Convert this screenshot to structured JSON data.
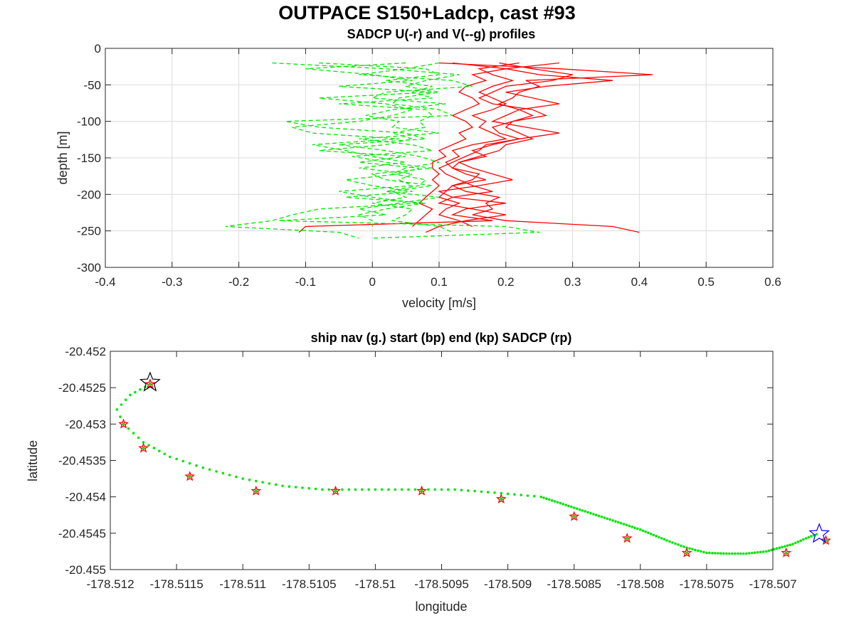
{
  "figure": {
    "title": "OUTPACE S150+Ladcp, cast #93"
  },
  "chart_data": [
    {
      "type": "line",
      "title": "SADCP U(-r) and V(--g) profiles",
      "xlabel": "velocity [m/s]",
      "ylabel": "depth [m]",
      "xlim": [
        -0.4,
        0.6
      ],
      "ylim": [
        -300,
        0
      ],
      "xticks": [
        -0.4,
        -0.3,
        -0.2,
        -0.1,
        0,
        0.1,
        0.2,
        0.3,
        0.4,
        0.5,
        0.6
      ],
      "yticks": [
        0,
        -50,
        -100,
        -150,
        -200,
        -250,
        -300
      ],
      "grid": true,
      "depths": [
        -20,
        -28,
        -36,
        -44,
        -52,
        -60,
        -68,
        -76,
        -84,
        -92,
        -100,
        -108,
        -116,
        -124,
        -132,
        -140,
        -148,
        -156,
        -164,
        -172,
        -180,
        -188,
        -196,
        -204,
        -212,
        -220,
        -228,
        -236,
        -244,
        -252,
        -260
      ],
      "series": [
        {
          "component": "U",
          "color": "#ff0000",
          "dash": "solid",
          "values": [
            0.1,
            0.28,
            0.42,
            0.23,
            0.25,
            0.22,
            0.21,
            0.19,
            0.22,
            0.24,
            0.21,
            0.2,
            0.22,
            0.24,
            0.2,
            0.19,
            0.16,
            0.13,
            0.12,
            0.14,
            0.17,
            0.12,
            0.14,
            0.19,
            0.17,
            0.18,
            0.15,
            0.2,
            0.36,
            0.4,
            null
          ]
        },
        {
          "component": "U",
          "color": "#ff0000",
          "dash": "solid",
          "values": [
            0.12,
            0.2,
            0.25,
            0.36,
            0.26,
            0.2,
            0.24,
            0.28,
            0.22,
            0.2,
            0.18,
            0.23,
            0.28,
            0.22,
            0.18,
            0.15,
            0.17,
            0.13,
            0.15,
            0.18,
            0.21,
            0.16,
            0.1,
            0.12,
            0.2,
            0.14,
            0.12,
            0.18,
            -0.1,
            -0.11,
            null
          ]
        },
        {
          "component": "U",
          "color": "#ff0000",
          "dash": "solid",
          "values": [
            0.22,
            0.16,
            0.18,
            0.21,
            0.18,
            0.16,
            0.18,
            0.2,
            0.18,
            0.15,
            0.17,
            0.16,
            0.18,
            0.2,
            0.15,
            0.12,
            0.13,
            0.11,
            0.12,
            0.16,
            0.15,
            0.12,
            0.11,
            0.1,
            0.13,
            0.11,
            0.1,
            0.13,
            0.15,
            null,
            null
          ]
        },
        {
          "component": "U",
          "color": "#ff0000",
          "dash": "solid",
          "values": [
            0.19,
            0.24,
            0.3,
            0.27,
            0.2,
            0.18,
            0.16,
            0.18,
            0.24,
            0.26,
            0.21,
            0.18,
            0.19,
            0.22,
            0.17,
            0.16,
            0.14,
            0.12,
            0.1,
            0.11,
            0.13,
            0.15,
            0.18,
            0.12,
            0.1,
            0.15,
            0.2,
            0.14,
            0.1,
            0.08,
            null
          ]
        },
        {
          "component": "U",
          "color": "#ff0000",
          "dash": "solid",
          "values": [
            0.28,
            0.2,
            0.15,
            0.17,
            0.14,
            0.13,
            0.15,
            0.16,
            0.14,
            0.12,
            0.14,
            0.15,
            0.13,
            0.14,
            0.12,
            0.1,
            0.11,
            0.09,
            0.09,
            0.1,
            0.09,
            0.1,
            0.09,
            0.08,
            0.07,
            0.09,
            0.08,
            0.07,
            0.06,
            null,
            null
          ]
        },
        {
          "component": "V",
          "color": "#00e600",
          "dash": "dashed",
          "values": [
            -0.15,
            0.02,
            0.13,
            0.08,
            0.05,
            0.1,
            0.04,
            0.03,
            0.1,
            0.12,
            -0.13,
            -0.08,
            0.05,
            0.08,
            -0.05,
            0.02,
            0.07,
            0.1,
            0.05,
            0.03,
            0.08,
            0.07,
            0.02,
            0.1,
            0.04,
            -0.02,
            0.02,
            -0.14,
            0.2,
            0.25,
            0.0
          ]
        },
        {
          "component": "V",
          "color": "#00e600",
          "dash": "dashed",
          "values": [
            0.05,
            -0.1,
            0.0,
            0.06,
            -0.05,
            0.09,
            -0.08,
            0.02,
            0.06,
            0.03,
            -0.02,
            -0.12,
            -0.09,
            0.04,
            -0.09,
            -0.04,
            0.0,
            0.05,
            -0.02,
            0.06,
            0.04,
            0.06,
            -0.05,
            0.0,
            0.07,
            -0.08,
            -0.12,
            -0.15,
            -0.22,
            -0.05,
            -0.02
          ]
        },
        {
          "component": "V",
          "color": "#00e600",
          "dash": "dashed",
          "values": [
            0.1,
            0.05,
            -0.02,
            0.12,
            0.15,
            0.02,
            0.0,
            0.11,
            0.03,
            -0.01,
            0.04,
            0.03,
            0.1,
            -0.02,
            0.06,
            0.09,
            -0.03,
            0.02,
            0.09,
            0.0,
            0.02,
            0.09,
            0.03,
            0.05,
            0.0,
            0.06,
            0.05,
            0.03,
            0.1,
            0.12,
            null
          ]
        },
        {
          "component": "V",
          "color": "#00e600",
          "dash": "dashed",
          "values": [
            -0.08,
            0.08,
            0.1,
            0.02,
            0.09,
            0.06,
            0.09,
            -0.05,
            0.08,
            0.09,
            0.07,
            0.08,
            0.03,
            0.06,
            0.02,
            -0.08,
            0.05,
            -0.02,
            0.07,
            0.04,
            -0.04,
            0.0,
            0.06,
            -0.04,
            0.08,
            0.02,
            -0.02,
            0.0,
            0.0,
            null,
            null
          ]
        }
      ]
    },
    {
      "type": "scatter",
      "title": "ship nav (g.) start (bp) end (kp) SADCP (rp)",
      "xlabel": "longitude",
      "ylabel": "latitude",
      "xlim": [
        -178.512,
        -178.507
      ],
      "ylim": [
        -20.455,
        -20.452
      ],
      "xticks": [
        -178.512,
        -178.5115,
        -178.511,
        -178.5105,
        -178.51,
        -178.5095,
        -178.509,
        -178.5085,
        -178.508,
        -178.5075,
        -178.507
      ],
      "xtick_labels": [
        "-178.512",
        "-178.5115",
        "-178.511",
        "-178.5105",
        "-178.51",
        "-178.5095",
        "-178.509",
        "-178.5085",
        "-178.508",
        "-178.5075",
        "-178.507"
      ],
      "yticks": [
        -20.452,
        -20.4525,
        -20.453,
        -20.4535,
        -20.454,
        -20.4545,
        -20.455
      ],
      "ytick_labels": [
        "-20.452",
        "-20.4525",
        "-20.453",
        "-20.4535",
        "-20.454",
        "-20.4545",
        "-20.455"
      ],
      "grid": false,
      "nav": {
        "color": "#00e600",
        "path": [
          [
            -178.5117,
            -20.45245
          ],
          [
            -178.51185,
            -20.4526
          ],
          [
            -178.51195,
            -20.4528
          ],
          [
            -178.5119,
            -20.453
          ],
          [
            -178.51175,
            -20.45325
          ],
          [
            -178.51155,
            -20.45345
          ],
          [
            -178.5113,
            -20.4536
          ],
          [
            -178.511,
            -20.45375
          ],
          [
            -178.5107,
            -20.45385
          ],
          [
            -178.5104,
            -20.4539
          ],
          [
            -178.51,
            -20.4539
          ],
          [
            -178.5097,
            -20.4539
          ],
          [
            -178.5094,
            -20.4539
          ],
          [
            -178.50905,
            -20.45395
          ],
          [
            -178.50875,
            -20.454
          ],
          [
            -178.5085,
            -20.45415
          ],
          [
            -178.50825,
            -20.4543
          ],
          [
            -178.508,
            -20.45445
          ],
          [
            -178.5078,
            -20.4546
          ],
          [
            -178.50765,
            -20.4547
          ],
          [
            -178.5075,
            -20.45477
          ],
          [
            -178.50735,
            -20.45478
          ],
          [
            -178.5072,
            -20.45478
          ],
          [
            -178.50705,
            -20.45475
          ],
          [
            -178.50695,
            -20.4547
          ],
          [
            -178.50685,
            -20.45465
          ],
          [
            -178.50675,
            -20.45457
          ],
          [
            -178.50665,
            -20.4545
          ]
        ]
      },
      "sadcp_points": {
        "color": "#ff0000",
        "points": [
          [
            -178.5117,
            -20.45245
          ],
          [
            -178.5119,
            -20.453
          ],
          [
            -178.51175,
            -20.45333
          ],
          [
            -178.5114,
            -20.45372
          ],
          [
            -178.5109,
            -20.45392
          ],
          [
            -178.5103,
            -20.45392
          ],
          [
            -178.50965,
            -20.45392
          ],
          [
            -178.50905,
            -20.45403
          ],
          [
            -178.5085,
            -20.45427
          ],
          [
            -178.5081,
            -20.45457
          ],
          [
            -178.50765,
            -20.45477
          ],
          [
            -178.5069,
            -20.45477
          ],
          [
            -178.5066,
            -20.4546
          ]
        ]
      },
      "start": {
        "lon": -178.5117,
        "lat": -20.45243,
        "color": "#000000"
      },
      "end": {
        "lon": -178.50665,
        "lat": -20.45451,
        "color": "#0000ff"
      }
    }
  ]
}
